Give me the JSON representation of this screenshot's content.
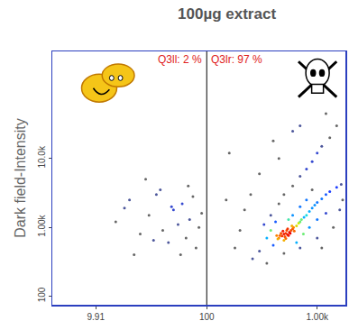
{
  "chart_data": {
    "type": "scatter",
    "title": "100µg extract",
    "y_label": "Dark field-Intensity",
    "log": true,
    "xlim": [
      4,
      1800
    ],
    "ylim": [
      75,
      360000
    ],
    "xticks": [
      9.91,
      100,
      {
        "value": 1000,
        "label": "1.00k"
      }
    ],
    "yticks": [
      100,
      {
        "value": 1000,
        "label": "1.00k"
      },
      {
        "value": 10000,
        "label": "10.0k"
      }
    ],
    "gate": 100,
    "annotations": [
      "Q3ll: 2 %",
      "Q3lr: 97 %"
    ],
    "x": [
      450,
      480,
      500,
      520,
      540,
      560,
      470,
      510,
      530,
      490,
      550,
      580,
      600,
      460,
      440,
      520,
      570,
      610,
      620,
      500,
      430,
      540,
      590,
      650,
      680,
      700,
      720,
      760,
      800,
      850,
      900,
      950,
      1000,
      1100,
      1200,
      1300,
      1500,
      1650,
      400,
      380,
      350,
      420,
      600,
      700,
      550,
      800,
      900,
      650,
      750,
      850,
      1000,
      1200,
      300,
      330,
      380,
      450,
      500,
      600,
      700,
      800,
      900,
      1000,
      1100,
      1300,
      1500,
      1200,
      700,
      400,
      300,
      250,
      220,
      200,
      180,
      260,
      350,
      500,
      700,
      1000,
      1400,
      1600,
      1700,
      1100,
      150,
      160,
      450,
      600,
      15,
      20,
      25,
      30,
      35,
      40,
      45,
      50,
      55,
      60,
      65,
      70,
      75,
      80,
      85,
      90,
      22,
      28,
      38,
      48,
      58,
      68,
      18,
      33
    ],
    "y": [
      700,
      750,
      800,
      820,
      780,
      850,
      820,
      730,
      900,
      880,
      760,
      900,
      950,
      760,
      680,
      690,
      820,
      1000,
      880,
      650,
      760,
      950,
      1050,
      1050,
      1150,
      1200,
      1300,
      1400,
      1500,
      1700,
      1900,
      2100,
      2300,
      2600,
      3000,
      3300,
      3800,
      4200,
      550,
      900,
      700,
      1200,
      1500,
      2000,
      1300,
      2500,
      3500,
      600,
      800,
      1000,
      1300,
      1600,
      450,
      1100,
      1500,
      2200,
      3000,
      4000,
      5500,
      7000,
      9000,
      12000,
      15000,
      20000,
      30000,
      45000,
      30000,
      18000,
      6000,
      3000,
      1800,
      900,
      500,
      350,
      300,
      420,
      500,
      700,
      1000,
      1800,
      2500,
      500,
      2500,
      12000,
      10000,
      25000,
      1200,
      2500,
      800,
      1500,
      3000,
      900,
      600,
      1800,
      1100,
      2200,
      700,
      1300,
      2800,
      500,
      1000,
      1600,
      400,
      5000,
      3500,
      2000,
      400,
      4000,
      1900,
      650
    ]
  }
}
